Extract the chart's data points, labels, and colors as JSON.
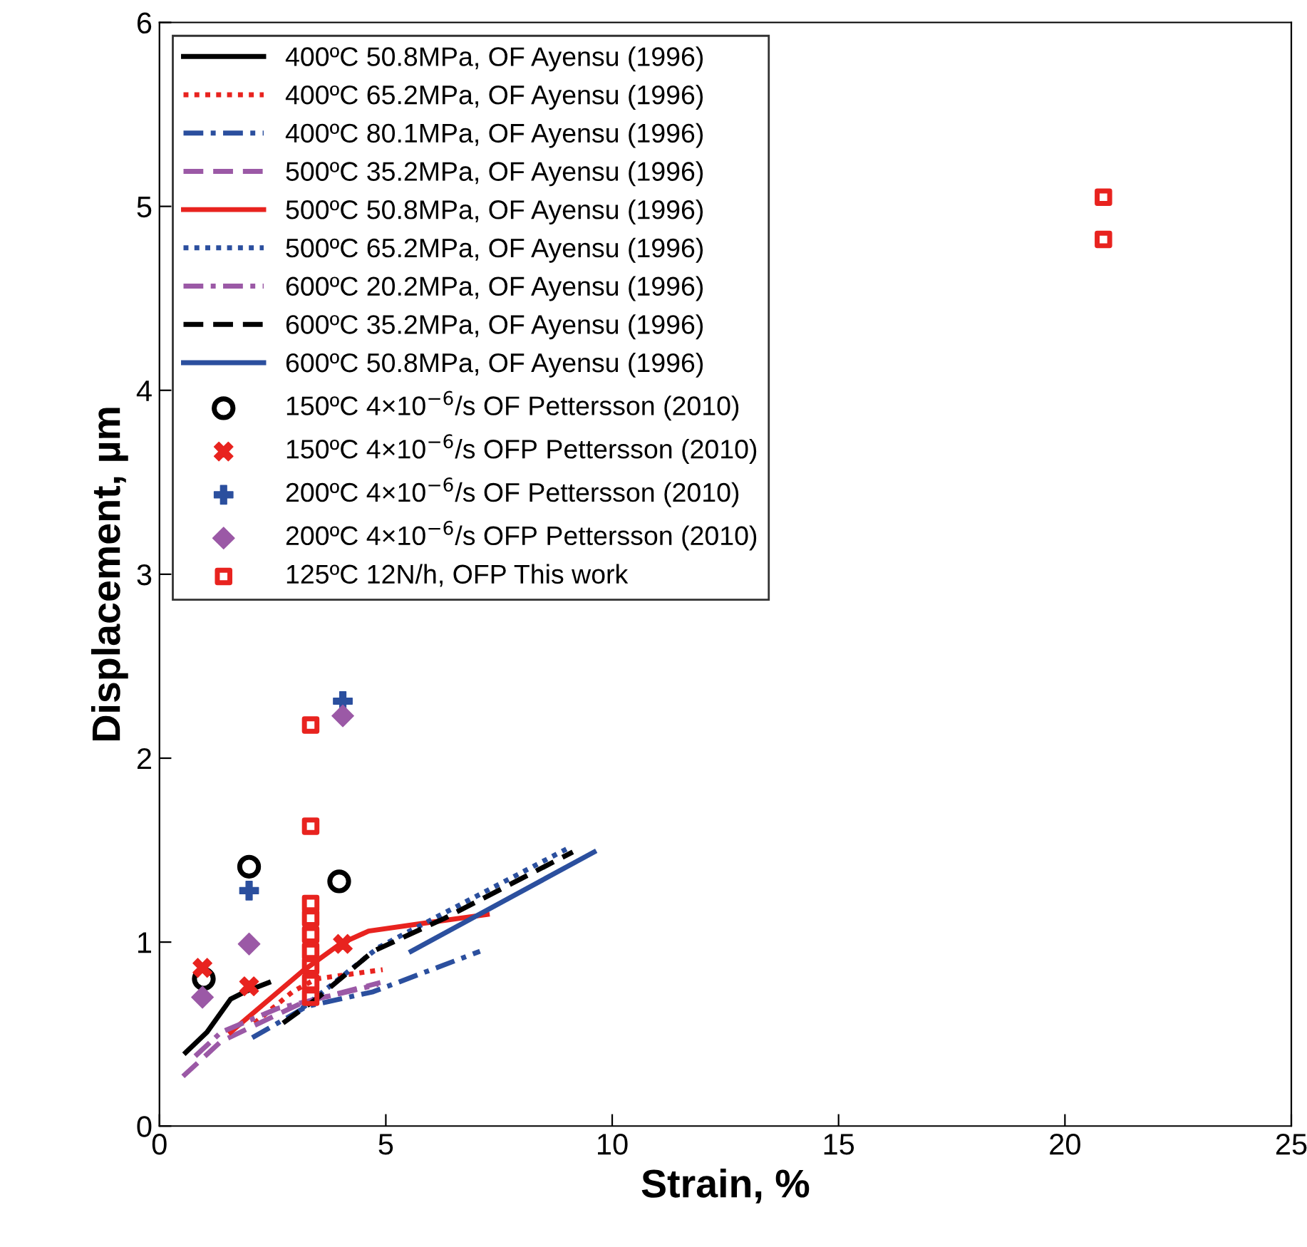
{
  "chart_data": {
    "type": "line",
    "xlabel": "Strain, %",
    "ylabel": "Displacement, µm",
    "xlim": [
      0,
      25
    ],
    "ylim": [
      0,
      6
    ],
    "xticks": [
      0,
      5,
      10,
      15,
      20,
      25
    ],
    "yticks": [
      0,
      1,
      2,
      3,
      4,
      5,
      6
    ],
    "grid": false,
    "legend": "top left",
    "series": [
      {
        "name": "400ºC 50.8MPa, OF Ayensu (1996)",
        "color": "#000000",
        "line_style": "solid",
        "x": [
          0.58,
          1.05,
          1.57,
          1.89,
          2.41
        ],
        "values": [
          0.4,
          0.51,
          0.69,
          0.73,
          0.78
        ]
      },
      {
        "name": "400ºC 65.2MPa, OF Ayensu (1996)",
        "color": "#e8231f",
        "line_style": "dotted",
        "x": [
          2.1,
          2.94,
          3.46,
          4.93
        ],
        "values": [
          0.56,
          0.73,
          0.8,
          0.85
        ]
      },
      {
        "name": "400ºC 80.1MPa, OF Ayensu (1996)",
        "color": "#2b4f9e",
        "line_style": "dashdot",
        "x": [
          2.05,
          3.25,
          4.72,
          7.08
        ],
        "values": [
          0.48,
          0.65,
          0.73,
          0.95
        ]
      },
      {
        "name": "500ºC 35.2MPa, OF Ayensu (1996)",
        "color": "#9b59a6",
        "line_style": "dashed",
        "x": [
          0.52,
          1.36,
          3.15,
          4.88
        ],
        "values": [
          0.27,
          0.46,
          0.67,
          0.78
        ]
      },
      {
        "name": "500ºC 50.8MPa, OF Ayensu (1996)",
        "color": "#e8231f",
        "line_style": "solid",
        "x": [
          1.57,
          3.15,
          3.99,
          4.62,
          5.77,
          7.24
        ],
        "values": [
          0.51,
          0.84,
          0.99,
          1.06,
          1.1,
          1.15
        ]
      },
      {
        "name": "500ºC 65.2MPa, OF Ayensu (1996)",
        "color": "#2b4f9e",
        "line_style": "dotted",
        "x": [
          3.15,
          4.83,
          9.02
        ],
        "values": [
          0.64,
          0.97,
          1.51
        ]
      },
      {
        "name": "600ºC 20.2MPa, OF Ayensu (1996)",
        "color": "#9b59a6",
        "line_style": "dashdot",
        "x": [
          0.79,
          1.36,
          2.62,
          4.83
        ],
        "values": [
          0.38,
          0.51,
          0.64,
          0.77
        ]
      },
      {
        "name": "600ºC 35.2MPa, OF Ayensu (1996)",
        "color": "#000000",
        "line_style": "dashed",
        "x": [
          2.73,
          3.46,
          4.72,
          6.3,
          9.13
        ],
        "values": [
          0.56,
          0.69,
          0.95,
          1.13,
          1.49
        ]
      },
      {
        "name": "600ºC 50.8MPa, OF Ayensu (1996)",
        "color": "#2b4f9e",
        "line_style": "solid",
        "x": [
          5.56,
          9.6
        ],
        "values": [
          0.95,
          1.49
        ]
      },
      {
        "name": "150ºC 4×10$^{−6}$/s OF Pettersson (2010)",
        "type": "scatter",
        "color": "#000000",
        "marker": "circle",
        "x": [
          0.98,
          1.98,
          3.97
        ],
        "values": [
          0.8,
          1.41,
          1.33
        ]
      },
      {
        "name": "150ºC 4×10$^{−6}$/s OFP Pettersson (2010)",
        "type": "scatter",
        "color": "#e8231f",
        "marker": "cross",
        "x": [
          0.95,
          1.98,
          4.05
        ],
        "values": [
          0.86,
          0.76,
          0.99
        ]
      },
      {
        "name": "200ºC 4×10$^{−6}$/s OF Pettersson (2010)",
        "type": "scatter",
        "color": "#2b4f9e",
        "marker": "plus",
        "x": [
          1.98,
          4.05
        ],
        "values": [
          1.28,
          2.31
        ]
      },
      {
        "name": "200ºC 4×10$^{−6}$/s OFP Pettersson (2010)",
        "type": "scatter",
        "color": "#9b59a6",
        "marker": "diamond",
        "x": [
          0.95,
          1.98,
          4.05
        ],
        "values": [
          0.7,
          0.99,
          2.23
        ]
      },
      {
        "name": "125ºC 12N/h, OFP This work",
        "type": "scatter",
        "color": "#e8231f",
        "marker": "square",
        "x": [
          3.34,
          3.34,
          3.34,
          3.34,
          3.34,
          3.34,
          3.34,
          3.34,
          3.34,
          20.85,
          20.85
        ],
        "values": [
          2.18,
          1.63,
          1.21,
          1.13,
          1.04,
          0.95,
          0.87,
          0.78,
          0.7,
          5.05,
          4.82
        ]
      }
    ]
  }
}
